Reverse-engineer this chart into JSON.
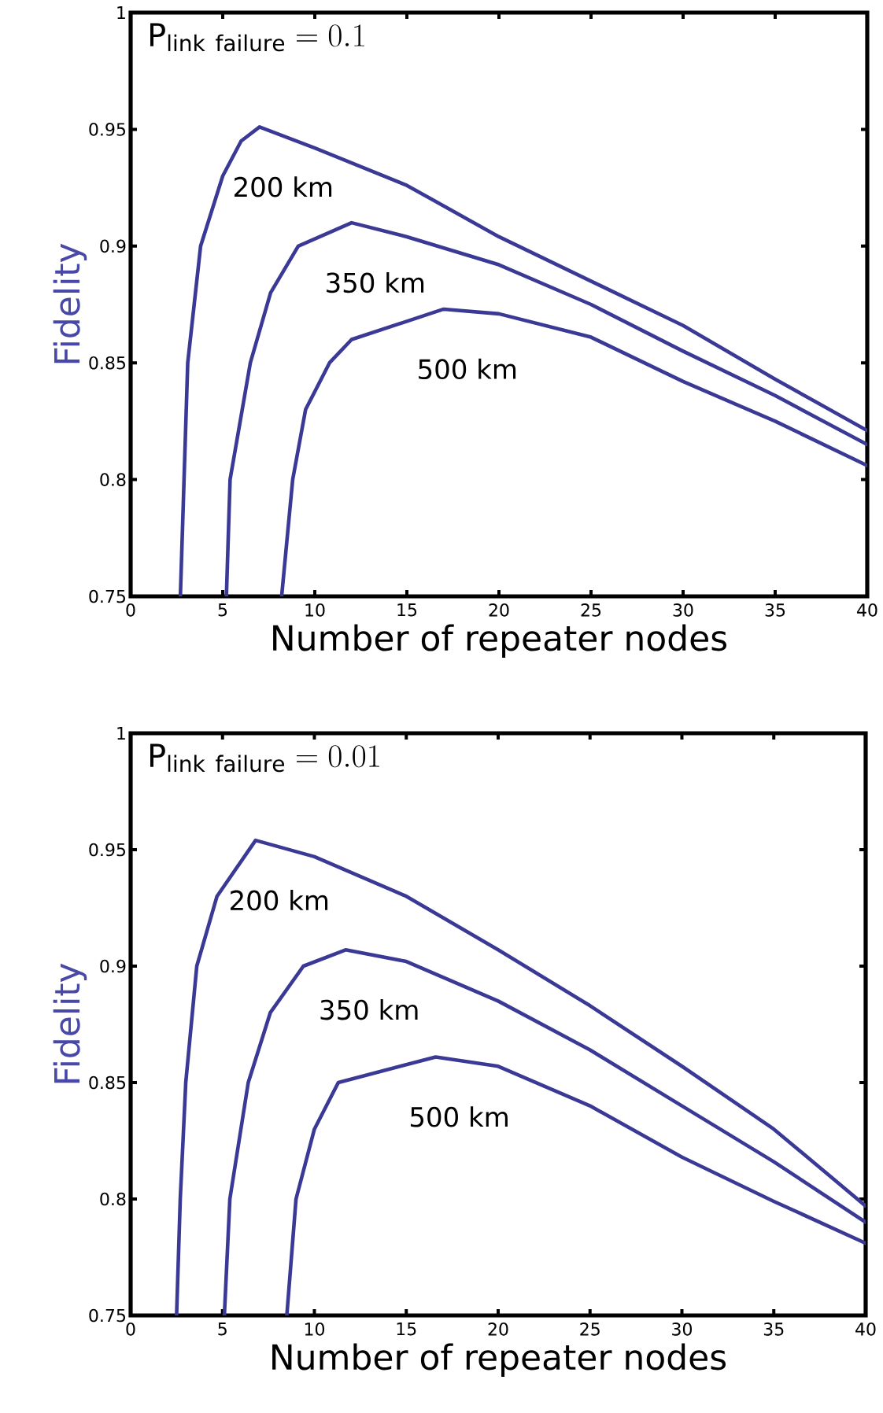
{
  "chart_data": [
    {
      "type": "line",
      "title": "\\mathrm{P}_{\\mathrm{link\\ failure}} = 0.1",
      "xlabel": "Number of repeater nodes",
      "ylabel": "Fidelity",
      "xlim": [
        0,
        40
      ],
      "ylim": [
        0.75,
        1
      ],
      "xticks": [
        0,
        5,
        10,
        15,
        20,
        25,
        30,
        35,
        40
      ],
      "yticks": [
        0.75,
        0.8,
        0.85,
        0.9,
        0.95,
        1
      ],
      "series": [
        {
          "name": "200 km",
          "color": "#3a3a96",
          "x": [
            2.7,
            2.9,
            3.1,
            3.8,
            5.0,
            6.0,
            7.0,
            10,
            15,
            20,
            25,
            30,
            35,
            40
          ],
          "values": [
            0.75,
            0.8,
            0.85,
            0.9,
            0.93,
            0.945,
            0.951,
            0.942,
            0.926,
            0.904,
            0.885,
            0.866,
            0.843,
            0.821
          ]
        },
        {
          "name": "350 km",
          "color": "#3a3a96",
          "x": [
            5.2,
            5.4,
            6.5,
            7.6,
            9.1,
            12.0,
            15,
            20,
            25,
            30,
            35,
            40
          ],
          "values": [
            0.75,
            0.8,
            0.85,
            0.88,
            0.9,
            0.91,
            0.904,
            0.892,
            0.875,
            0.855,
            0.836,
            0.815
          ]
        },
        {
          "name": "500 km",
          "color": "#3a3a96",
          "x": [
            8.2,
            8.8,
            9.5,
            10.8,
            12.0,
            17.0,
            20,
            25,
            30,
            35,
            40
          ],
          "values": [
            0.75,
            0.8,
            0.83,
            0.85,
            0.86,
            0.873,
            0.871,
            0.861,
            0.842,
            0.825,
            0.806
          ]
        }
      ]
    },
    {
      "type": "line",
      "title": "\\mathrm{P}_{\\mathrm{link\\ failure}} = 0.01",
      "xlabel": "Number of repeater nodes",
      "ylabel": "Fidelity",
      "xlim": [
        0,
        40
      ],
      "ylim": [
        0.75,
        1
      ],
      "xticks": [
        0,
        5,
        10,
        15,
        20,
        25,
        30,
        35,
        40
      ],
      "yticks": [
        0.75,
        0.8,
        0.85,
        0.9,
        0.95,
        1
      ],
      "series": [
        {
          "name": "200 km",
          "color": "#3a3a96",
          "x": [
            2.5,
            2.7,
            3.0,
            3.6,
            4.7,
            6.8,
            10,
            15,
            20,
            25,
            30,
            35,
            40
          ],
          "values": [
            0.75,
            0.8,
            0.85,
            0.9,
            0.93,
            0.954,
            0.947,
            0.93,
            0.907,
            0.883,
            0.857,
            0.83,
            0.797
          ]
        },
        {
          "name": "350 km",
          "color": "#3a3a96",
          "x": [
            5.1,
            5.4,
            6.4,
            7.6,
            9.4,
            11.7,
            15,
            20,
            25,
            30,
            35,
            40
          ],
          "values": [
            0.75,
            0.8,
            0.85,
            0.88,
            0.9,
            0.907,
            0.902,
            0.885,
            0.864,
            0.84,
            0.816,
            0.79
          ]
        },
        {
          "name": "500 km",
          "color": "#3a3a96",
          "x": [
            8.5,
            9.0,
            10.0,
            11.3,
            16.6,
            20,
            25,
            30,
            35,
            40
          ],
          "values": [
            0.75,
            0.8,
            0.83,
            0.85,
            0.861,
            0.857,
            0.84,
            0.818,
            0.799,
            0.781
          ]
        }
      ]
    }
  ]
}
